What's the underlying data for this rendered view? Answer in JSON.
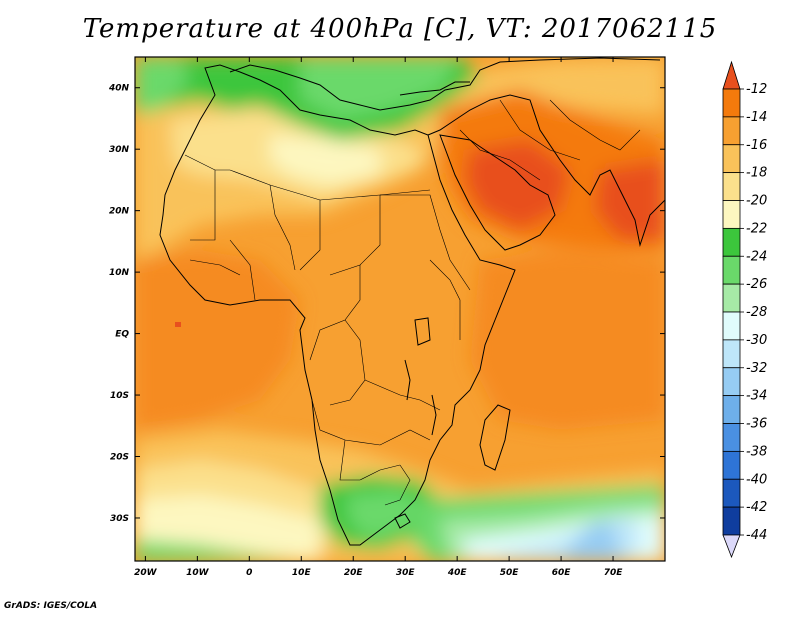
{
  "title": "Temperature at 400hPa [C], VT: 2017062115",
  "credit": "GrADS: IGES/COLA",
  "map": {
    "lon_range": [
      -22,
      80
    ],
    "lat_range": [
      -37,
      45
    ],
    "lon_ticks": [
      "20W",
      "10W",
      "0",
      "10E",
      "20E",
      "30E",
      "40E",
      "50E",
      "60E",
      "70E"
    ],
    "lat_ticks": [
      "40N",
      "30N",
      "20N",
      "10N",
      "EQ",
      "10S",
      "20S",
      "30S"
    ],
    "field": "Temperature at 400hPa",
    "units": "C"
  },
  "colorbar": {
    "labels": [
      "-12",
      "-14",
      "-16",
      "-18",
      "-20",
      "-22",
      "-24",
      "-26",
      "-28",
      "-30",
      "-32",
      "-34",
      "-36",
      "-38",
      "-40",
      "-42",
      "-44"
    ],
    "colors": [
      "#e8501e",
      "#f47a0c",
      "#f7a031",
      "#f9c25a",
      "#fbe08c",
      "#fdf7c0",
      "#3cc63c",
      "#6ad96a",
      "#a6eaa6",
      "#e0fcfc",
      "#bee6f9",
      "#96ccf3",
      "#6eafea",
      "#4a90e2",
      "#2e74d6",
      "#1c58bd",
      "#0f3d9e",
      "#0a2676"
    ],
    "over_color": "#e8501e",
    "under_color": "#dcd9fa"
  }
}
